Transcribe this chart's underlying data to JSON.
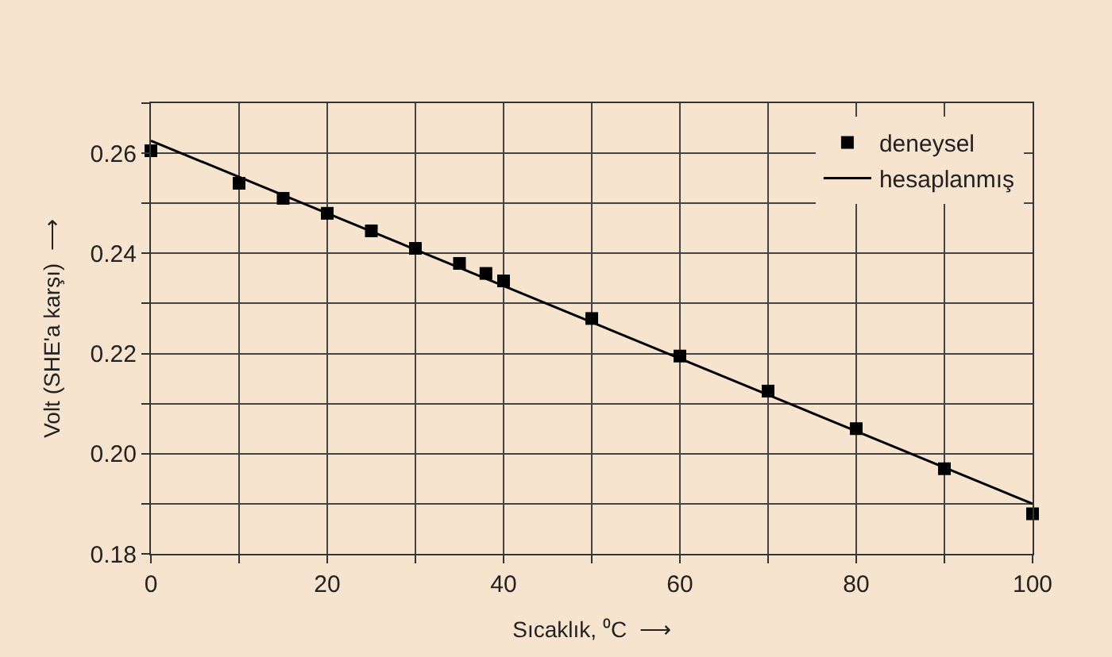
{
  "chart_data": {
    "type": "scatter",
    "xlabel": "Sıcaklık, ⁰C  ⟶",
    "ylabel": "Volt (SHE'a karşı)  ⟶",
    "xlim": [
      0,
      100
    ],
    "ylim": [
      0.18,
      0.27
    ],
    "xticks": [
      0,
      {
        "value": 10,
        "label": null
      },
      20,
      {
        "value": 30,
        "label": null
      },
      40,
      {
        "value": 50,
        "label": null
      },
      60,
      {
        "value": 70,
        "label": null
      },
      80,
      {
        "value": 90,
        "label": null
      },
      100
    ],
    "yticks": [
      {
        "value": 0.18,
        "label": "0.18"
      },
      {
        "value": 0.19,
        "label": null
      },
      {
        "value": 0.2,
        "label": "0.20"
      },
      {
        "value": 0.21,
        "label": null
      },
      {
        "value": 0.22,
        "label": "0.22"
      },
      {
        "value": 0.23,
        "label": null
      },
      {
        "value": 0.24,
        "label": "0.24"
      },
      {
        "value": 0.25,
        "label": null
      },
      {
        "value": 0.26,
        "label": "0.26"
      },
      {
        "value": 0.27,
        "label": null
      }
    ],
    "grid": true,
    "legend": "top right",
    "series": [
      {
        "name": "deneysel",
        "marker": "square",
        "color": "#000000",
        "x": [
          0,
          10,
          15,
          20,
          25,
          30,
          35,
          38,
          40,
          50,
          60,
          70,
          80,
          90,
          100
        ],
        "values": [
          0.2605,
          0.254,
          0.251,
          0.248,
          0.2445,
          0.241,
          0.238,
          0.236,
          0.2345,
          0.227,
          0.2195,
          0.2125,
          0.205,
          0.197,
          0.188
        ]
      },
      {
        "name": "hesaplanmış",
        "type": "line",
        "color": "#000000",
        "x": [
          0,
          100
        ],
        "values": [
          0.2625,
          0.19
        ]
      }
    ]
  }
}
